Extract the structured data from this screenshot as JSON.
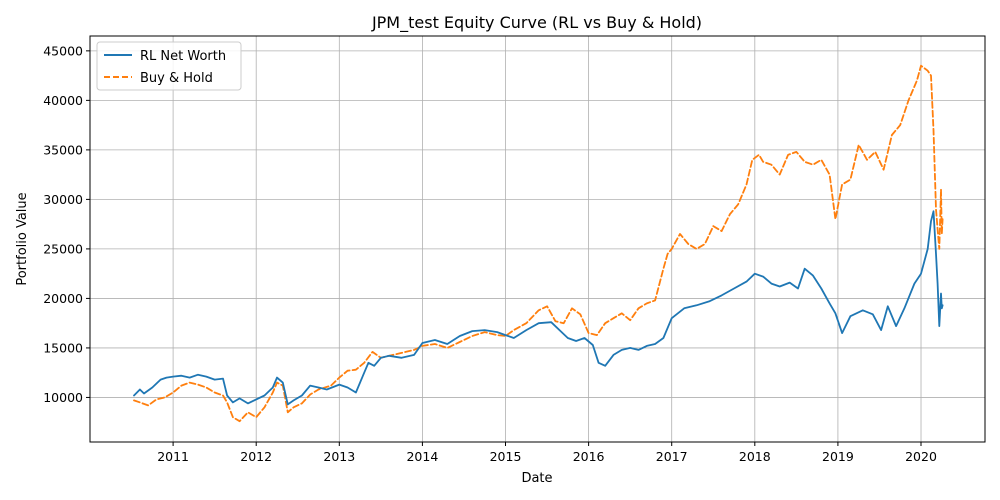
{
  "colors": {
    "rl": "#1f77b4",
    "bh": "#ff7f0e",
    "grid": "#b0b0b0"
  },
  "chart_data": {
    "type": "line",
    "title": "JPM_test Equity Curve (RL vs Buy & Hold)",
    "xlabel": "Date",
    "ylabel": "Portfolio Value",
    "xlim": [
      2010.0,
      2020.77
    ],
    "ylim": [
      5500,
      46500
    ],
    "x_ticks": [
      2011,
      2012,
      2013,
      2014,
      2015,
      2016,
      2017,
      2018,
      2019,
      2020
    ],
    "x_tick_labels": [
      "2011",
      "2012",
      "2013",
      "2014",
      "2015",
      "2016",
      "2017",
      "2018",
      "2019",
      "2020"
    ],
    "y_ticks": [
      10000,
      15000,
      20000,
      25000,
      30000,
      35000,
      40000,
      45000
    ],
    "y_tick_labels": [
      "10000",
      "15000",
      "20000",
      "25000",
      "30000",
      "35000",
      "40000",
      "45000"
    ],
    "grid": true,
    "legend_position": "top-left",
    "series": [
      {
        "name": "RL Net Worth",
        "style": "solid",
        "color_key": "rl",
        "x": [
          2010.53,
          2010.6,
          2010.65,
          2010.75,
          2010.85,
          2010.92,
          2011.0,
          2011.1,
          2011.2,
          2011.3,
          2011.4,
          2011.5,
          2011.6,
          2011.65,
          2011.72,
          2011.8,
          2011.9,
          2012.0,
          2012.1,
          2012.2,
          2012.25,
          2012.32,
          2012.38,
          2012.45,
          2012.55,
          2012.65,
          2012.75,
          2012.85,
          2013.0,
          2013.1,
          2013.2,
          2013.3,
          2013.35,
          2013.42,
          2013.5,
          2013.6,
          2013.75,
          2013.9,
          2014.0,
          2014.15,
          2014.3,
          2014.45,
          2014.6,
          2014.75,
          2014.9,
          2015.0,
          2015.1,
          2015.25,
          2015.4,
          2015.55,
          2015.65,
          2015.75,
          2015.85,
          2015.95,
          2016.05,
          2016.12,
          2016.2,
          2016.3,
          2016.4,
          2016.5,
          2016.6,
          2016.7,
          2016.8,
          2016.9,
          2017.0,
          2017.15,
          2017.3,
          2017.45,
          2017.6,
          2017.75,
          2017.9,
          2018.0,
          2018.1,
          2018.2,
          2018.3,
          2018.42,
          2018.52,
          2018.6,
          2018.7,
          2018.8,
          2018.9,
          2018.97,
          2019.05,
          2019.15,
          2019.3,
          2019.42,
          2019.52,
          2019.6,
          2019.7,
          2019.8,
          2019.92,
          2020.0,
          2020.08,
          2020.12,
          2020.15,
          2020.18,
          2020.2,
          2020.22,
          2020.24,
          2020.25,
          2020.26
        ],
        "y": [
          10200,
          10800,
          10400,
          11000,
          11800,
          12000,
          12100,
          12200,
          12000,
          12300,
          12100,
          11800,
          11900,
          10200,
          9500,
          9900,
          9400,
          9800,
          10200,
          11000,
          12000,
          11500,
          9300,
          9700,
          10200,
          11200,
          11000,
          10800,
          11300,
          11000,
          10500,
          12500,
          13500,
          13200,
          14000,
          14200,
          14000,
          14300,
          15500,
          15800,
          15400,
          16200,
          16700,
          16800,
          16600,
          16300,
          16000,
          16800,
          17500,
          17600,
          16800,
          16000,
          15700,
          16000,
          15300,
          13500,
          13200,
          14300,
          14800,
          15000,
          14800,
          15200,
          15400,
          16000,
          18000,
          19000,
          19300,
          19700,
          20300,
          21000,
          21700,
          22500,
          22200,
          21500,
          21200,
          21600,
          21000,
          23000,
          22300,
          21000,
          19500,
          18500,
          16500,
          18200,
          18800,
          18400,
          16800,
          19200,
          17200,
          19000,
          21500,
          22500,
          25000,
          27800,
          28800,
          24500,
          21500,
          17200,
          20500,
          19000,
          19300
        ]
      },
      {
        "name": "Buy & Hold",
        "style": "dashed",
        "color_key": "bh",
        "x": [
          2010.53,
          2010.6,
          2010.7,
          2010.8,
          2010.9,
          2011.0,
          2011.1,
          2011.2,
          2011.3,
          2011.4,
          2011.5,
          2011.6,
          2011.65,
          2011.72,
          2011.8,
          2011.9,
          2012.0,
          2012.1,
          2012.2,
          2012.25,
          2012.32,
          2012.38,
          2012.45,
          2012.55,
          2012.65,
          2012.75,
          2012.9,
          2013.0,
          2013.1,
          2013.2,
          2013.3,
          2013.4,
          2013.5,
          2013.6,
          2013.75,
          2013.9,
          2014.0,
          2014.15,
          2014.3,
          2014.45,
          2014.6,
          2014.75,
          2014.9,
          2015.0,
          2015.1,
          2015.25,
          2015.4,
          2015.5,
          2015.6,
          2015.7,
          2015.8,
          2015.9,
          2016.0,
          2016.1,
          2016.2,
          2016.3,
          2016.4,
          2016.5,
          2016.6,
          2016.7,
          2016.8,
          2016.9,
          2016.95,
          2017.0,
          2017.1,
          2017.2,
          2017.3,
          2017.4,
          2017.5,
          2017.6,
          2017.7,
          2017.8,
          2017.9,
          2017.97,
          2018.05,
          2018.1,
          2018.2,
          2018.3,
          2018.4,
          2018.5,
          2018.6,
          2018.7,
          2018.8,
          2018.9,
          2018.97,
          2019.05,
          2019.15,
          2019.25,
          2019.35,
          2019.45,
          2019.55,
          2019.65,
          2019.75,
          2019.85,
          2019.95,
          2020.0,
          2020.08,
          2020.12,
          2020.15,
          2020.18,
          2020.2,
          2020.22,
          2020.24,
          2020.25,
          2020.26
        ],
        "y": [
          9700,
          9500,
          9200,
          9800,
          10000,
          10500,
          11200,
          11500,
          11300,
          11000,
          10500,
          10200,
          9500,
          8000,
          7600,
          8500,
          8000,
          9000,
          10500,
          11500,
          11200,
          8500,
          9000,
          9400,
          10300,
          10800,
          11200,
          12000,
          12700,
          12800,
          13500,
          14600,
          14000,
          14200,
          14500,
          14800,
          15200,
          15400,
          15000,
          15600,
          16200,
          16600,
          16300,
          16200,
          16800,
          17500,
          18800,
          19200,
          17700,
          17500,
          19000,
          18400,
          16500,
          16300,
          17500,
          18000,
          18500,
          17800,
          19000,
          19500,
          19800,
          23000,
          24500,
          25000,
          26500,
          25500,
          25000,
          25500,
          27300,
          26800,
          28500,
          29500,
          31500,
          34000,
          34500,
          33800,
          33500,
          32500,
          34500,
          34800,
          33800,
          33500,
          34000,
          32500,
          28000,
          31500,
          32000,
          35500,
          34000,
          34800,
          33000,
          36500,
          37500,
          40000,
          42000,
          43500,
          43000,
          42500,
          37000,
          29000,
          27000,
          25000,
          31000,
          26500,
          28000
        ]
      }
    ]
  }
}
